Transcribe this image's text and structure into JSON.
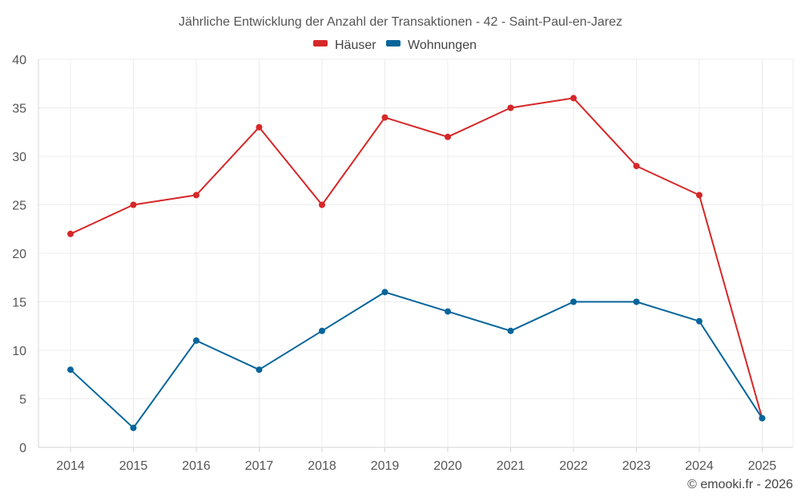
{
  "chart_data": {
    "type": "line",
    "title": "Jährliche Entwicklung der Anzahl der Transaktionen - 42 - Saint-Paul-en-Jarez",
    "categories": [
      "2014",
      "2015",
      "2016",
      "2017",
      "2018",
      "2019",
      "2020",
      "2021",
      "2022",
      "2023",
      "2024",
      "2025"
    ],
    "series": [
      {
        "name": "Häuser",
        "color": "#d62728",
        "values": [
          22,
          25,
          26,
          33,
          25,
          34,
          32,
          35,
          36,
          29,
          26,
          3
        ]
      },
      {
        "name": "Wohnungen",
        "color": "#05659a",
        "values": [
          8,
          2,
          11,
          8,
          12,
          16,
          14,
          12,
          15,
          15,
          13,
          3
        ]
      }
    ],
    "ylim": [
      0,
      40
    ],
    "yticks": [
      0,
      5,
      10,
      15,
      20,
      25,
      30,
      35,
      40
    ],
    "grid": true,
    "legend_position": "top-center",
    "xlabel": "",
    "ylabel": ""
  },
  "credit": "© emooki.fr - 2026"
}
